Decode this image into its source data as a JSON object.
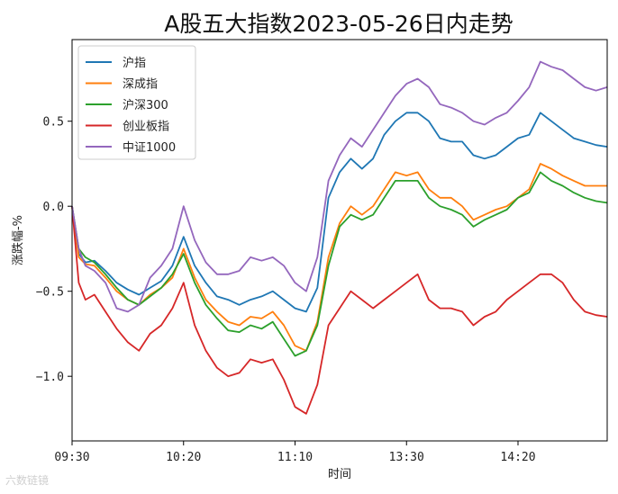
{
  "chart_data": {
    "type": "line",
    "title": "A股五大指数2023-05-26日内走势",
    "xlabel": "时间",
    "ylabel": "涨跌幅-%",
    "ylim": [
      -1.38,
      0.98
    ],
    "xlim": [
      0,
      240
    ],
    "x_ticks": [
      {
        "label": "09:30",
        "x": 0
      },
      {
        "label": "10:20",
        "x": 50
      },
      {
        "label": "11:10",
        "x": 100
      },
      {
        "label": "13:30",
        "x": 150
      },
      {
        "label": "14:20",
        "x": 200
      }
    ],
    "y_ticks": [
      {
        "label": "0.5",
        "y": 0.5
      },
      {
        "label": "0.0",
        "y": 0.0
      },
      {
        "label": "−0.5",
        "y": -0.5
      },
      {
        "label": "−1.0",
        "y": -1.0
      }
    ],
    "grid": false,
    "legend": "upper-left",
    "series": [
      {
        "name": "沪指",
        "color": "#1f77b4",
        "points": [
          [
            0,
            0
          ],
          [
            3,
            -0.28
          ],
          [
            6,
            -0.33
          ],
          [
            10,
            -0.32
          ],
          [
            15,
            -0.38
          ],
          [
            20,
            -0.45
          ],
          [
            25,
            -0.49
          ],
          [
            30,
            -0.52
          ],
          [
            35,
            -0.48
          ],
          [
            40,
            -0.44
          ],
          [
            45,
            -0.35
          ],
          [
            50,
            -0.18
          ],
          [
            55,
            -0.35
          ],
          [
            60,
            -0.45
          ],
          [
            65,
            -0.53
          ],
          [
            70,
            -0.55
          ],
          [
            75,
            -0.58
          ],
          [
            80,
            -0.55
          ],
          [
            85,
            -0.53
          ],
          [
            90,
            -0.5
          ],
          [
            95,
            -0.55
          ],
          [
            100,
            -0.6
          ],
          [
            105,
            -0.62
          ],
          [
            110,
            -0.48
          ],
          [
            115,
            0.05
          ],
          [
            120,
            0.2
          ],
          [
            125,
            0.28
          ],
          [
            130,
            0.22
          ],
          [
            135,
            0.28
          ],
          [
            140,
            0.42
          ],
          [
            145,
            0.5
          ],
          [
            150,
            0.55
          ],
          [
            155,
            0.55
          ],
          [
            160,
            0.5
          ],
          [
            165,
            0.4
          ],
          [
            170,
            0.38
          ],
          [
            175,
            0.38
          ],
          [
            180,
            0.3
          ],
          [
            185,
            0.28
          ],
          [
            190,
            0.3
          ],
          [
            195,
            0.35
          ],
          [
            200,
            0.4
          ],
          [
            205,
            0.42
          ],
          [
            210,
            0.55
          ],
          [
            215,
            0.5
          ],
          [
            220,
            0.45
          ],
          [
            225,
            0.4
          ],
          [
            230,
            0.38
          ],
          [
            235,
            0.36
          ],
          [
            240,
            0.35
          ]
        ]
      },
      {
        "name": "深成指",
        "color": "#ff7f0e",
        "points": [
          [
            0,
            0
          ],
          [
            3,
            -0.3
          ],
          [
            6,
            -0.34
          ],
          [
            10,
            -0.35
          ],
          [
            15,
            -0.42
          ],
          [
            20,
            -0.5
          ],
          [
            25,
            -0.55
          ],
          [
            30,
            -0.58
          ],
          [
            35,
            -0.52
          ],
          [
            40,
            -0.48
          ],
          [
            45,
            -0.42
          ],
          [
            50,
            -0.25
          ],
          [
            55,
            -0.42
          ],
          [
            60,
            -0.55
          ],
          [
            65,
            -0.62
          ],
          [
            70,
            -0.68
          ],
          [
            75,
            -0.7
          ],
          [
            80,
            -0.65
          ],
          [
            85,
            -0.66
          ],
          [
            90,
            -0.62
          ],
          [
            95,
            -0.7
          ],
          [
            100,
            -0.82
          ],
          [
            105,
            -0.85
          ],
          [
            110,
            -0.68
          ],
          [
            115,
            -0.3
          ],
          [
            120,
            -0.1
          ],
          [
            125,
            0.0
          ],
          [
            130,
            -0.05
          ],
          [
            135,
            0.0
          ],
          [
            140,
            0.1
          ],
          [
            145,
            0.2
          ],
          [
            150,
            0.18
          ],
          [
            155,
            0.2
          ],
          [
            160,
            0.1
          ],
          [
            165,
            0.05
          ],
          [
            170,
            0.05
          ],
          [
            175,
            0.0
          ],
          [
            180,
            -0.08
          ],
          [
            185,
            -0.05
          ],
          [
            190,
            -0.02
          ],
          [
            195,
            0.0
          ],
          [
            200,
            0.05
          ],
          [
            205,
            0.1
          ],
          [
            210,
            0.25
          ],
          [
            215,
            0.22
          ],
          [
            220,
            0.18
          ],
          [
            225,
            0.15
          ],
          [
            230,
            0.12
          ],
          [
            235,
            0.12
          ],
          [
            240,
            0.12
          ]
        ]
      },
      {
        "name": "沪深300",
        "color": "#2ca02c",
        "points": [
          [
            0,
            0
          ],
          [
            3,
            -0.25
          ],
          [
            6,
            -0.3
          ],
          [
            10,
            -0.33
          ],
          [
            15,
            -0.4
          ],
          [
            20,
            -0.48
          ],
          [
            25,
            -0.55
          ],
          [
            30,
            -0.58
          ],
          [
            35,
            -0.53
          ],
          [
            40,
            -0.48
          ],
          [
            45,
            -0.4
          ],
          [
            50,
            -0.28
          ],
          [
            55,
            -0.45
          ],
          [
            60,
            -0.58
          ],
          [
            65,
            -0.66
          ],
          [
            70,
            -0.73
          ],
          [
            75,
            -0.74
          ],
          [
            80,
            -0.7
          ],
          [
            85,
            -0.72
          ],
          [
            90,
            -0.68
          ],
          [
            95,
            -0.78
          ],
          [
            100,
            -0.88
          ],
          [
            105,
            -0.85
          ],
          [
            110,
            -0.7
          ],
          [
            115,
            -0.35
          ],
          [
            120,
            -0.12
          ],
          [
            125,
            -0.05
          ],
          [
            130,
            -0.08
          ],
          [
            135,
            -0.05
          ],
          [
            140,
            0.05
          ],
          [
            145,
            0.15
          ],
          [
            150,
            0.15
          ],
          [
            155,
            0.15
          ],
          [
            160,
            0.05
          ],
          [
            165,
            0.0
          ],
          [
            170,
            -0.02
          ],
          [
            175,
            -0.05
          ],
          [
            180,
            -0.12
          ],
          [
            185,
            -0.08
          ],
          [
            190,
            -0.05
          ],
          [
            195,
            -0.02
          ],
          [
            200,
            0.05
          ],
          [
            205,
            0.08
          ],
          [
            210,
            0.2
          ],
          [
            215,
            0.15
          ],
          [
            220,
            0.12
          ],
          [
            225,
            0.08
          ],
          [
            230,
            0.05
          ],
          [
            235,
            0.03
          ],
          [
            240,
            0.02
          ]
        ]
      },
      {
        "name": "创业板指",
        "color": "#d62728",
        "points": [
          [
            0,
            0
          ],
          [
            3,
            -0.45
          ],
          [
            6,
            -0.55
          ],
          [
            10,
            -0.52
          ],
          [
            15,
            -0.62
          ],
          [
            20,
            -0.72
          ],
          [
            25,
            -0.8
          ],
          [
            30,
            -0.85
          ],
          [
            35,
            -0.75
          ],
          [
            40,
            -0.7
          ],
          [
            45,
            -0.6
          ],
          [
            50,
            -0.45
          ],
          [
            55,
            -0.7
          ],
          [
            60,
            -0.85
          ],
          [
            65,
            -0.95
          ],
          [
            70,
            -1.0
          ],
          [
            75,
            -0.98
          ],
          [
            80,
            -0.9
          ],
          [
            85,
            -0.92
          ],
          [
            90,
            -0.9
          ],
          [
            95,
            -1.02
          ],
          [
            100,
            -1.18
          ],
          [
            105,
            -1.22
          ],
          [
            110,
            -1.05
          ],
          [
            115,
            -0.7
          ],
          [
            120,
            -0.6
          ],
          [
            125,
            -0.5
          ],
          [
            130,
            -0.55
          ],
          [
            135,
            -0.6
          ],
          [
            140,
            -0.55
          ],
          [
            145,
            -0.5
          ],
          [
            150,
            -0.45
          ],
          [
            155,
            -0.4
          ],
          [
            160,
            -0.55
          ],
          [
            165,
            -0.6
          ],
          [
            170,
            -0.6
          ],
          [
            175,
            -0.62
          ],
          [
            180,
            -0.7
          ],
          [
            185,
            -0.65
          ],
          [
            190,
            -0.62
          ],
          [
            195,
            -0.55
          ],
          [
            200,
            -0.5
          ],
          [
            205,
            -0.45
          ],
          [
            210,
            -0.4
          ],
          [
            215,
            -0.4
          ],
          [
            220,
            -0.45
          ],
          [
            225,
            -0.55
          ],
          [
            230,
            -0.62
          ],
          [
            235,
            -0.64
          ],
          [
            240,
            -0.65
          ]
        ]
      },
      {
        "name": "中证1000",
        "color": "#9467bd",
        "points": [
          [
            0,
            0
          ],
          [
            3,
            -0.25
          ],
          [
            6,
            -0.35
          ],
          [
            10,
            -0.38
          ],
          [
            15,
            -0.45
          ],
          [
            20,
            -0.6
          ],
          [
            25,
            -0.62
          ],
          [
            30,
            -0.58
          ],
          [
            35,
            -0.42
          ],
          [
            40,
            -0.35
          ],
          [
            45,
            -0.25
          ],
          [
            50,
            0.0
          ],
          [
            55,
            -0.2
          ],
          [
            60,
            -0.33
          ],
          [
            65,
            -0.4
          ],
          [
            70,
            -0.4
          ],
          [
            75,
            -0.38
          ],
          [
            80,
            -0.3
          ],
          [
            85,
            -0.32
          ],
          [
            90,
            -0.3
          ],
          [
            95,
            -0.35
          ],
          [
            100,
            -0.45
          ],
          [
            105,
            -0.5
          ],
          [
            110,
            -0.3
          ],
          [
            115,
            0.15
          ],
          [
            120,
            0.3
          ],
          [
            125,
            0.4
          ],
          [
            130,
            0.35
          ],
          [
            135,
            0.45
          ],
          [
            140,
            0.55
          ],
          [
            145,
            0.65
          ],
          [
            150,
            0.72
          ],
          [
            155,
            0.75
          ],
          [
            160,
            0.7
          ],
          [
            165,
            0.6
          ],
          [
            170,
            0.58
          ],
          [
            175,
            0.55
          ],
          [
            180,
            0.5
          ],
          [
            185,
            0.48
          ],
          [
            190,
            0.52
          ],
          [
            195,
            0.55
          ],
          [
            200,
            0.62
          ],
          [
            205,
            0.7
          ],
          [
            210,
            0.85
          ],
          [
            215,
            0.82
          ],
          [
            220,
            0.8
          ],
          [
            225,
            0.75
          ],
          [
            230,
            0.7
          ],
          [
            235,
            0.68
          ],
          [
            240,
            0.7
          ]
        ]
      }
    ]
  },
  "watermark": "六数链镜"
}
